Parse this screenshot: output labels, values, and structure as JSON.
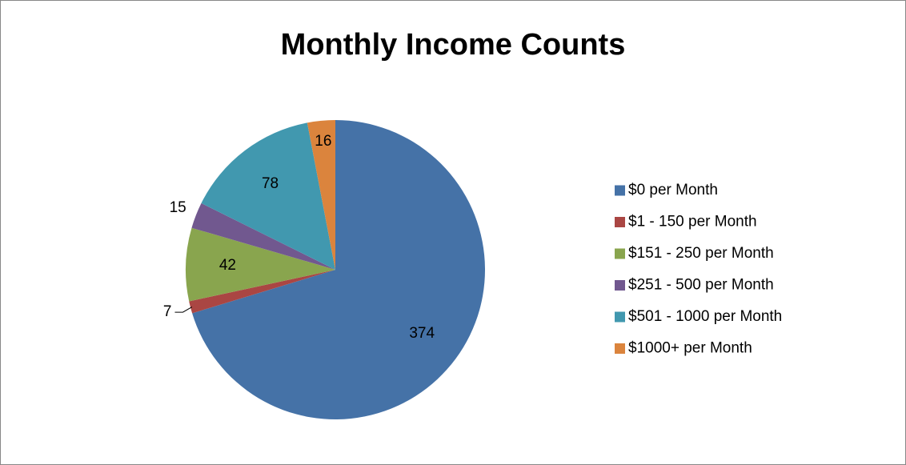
{
  "chart_data": {
    "type": "pie",
    "title": "Monthly Income Counts",
    "categories": [
      "$0 per Month",
      "$1 - 150 per Month",
      "$151 - 250 per Month",
      "$251 - 500 per Month",
      "$501 - 1000 per Month",
      "$1000+ per Month"
    ],
    "values": [
      374,
      7,
      42,
      15,
      78,
      16
    ],
    "colors": [
      "#4572a7",
      "#aa4643",
      "#89a54e",
      "#71588f",
      "#4198af",
      "#db843d"
    ],
    "legend": "right"
  }
}
